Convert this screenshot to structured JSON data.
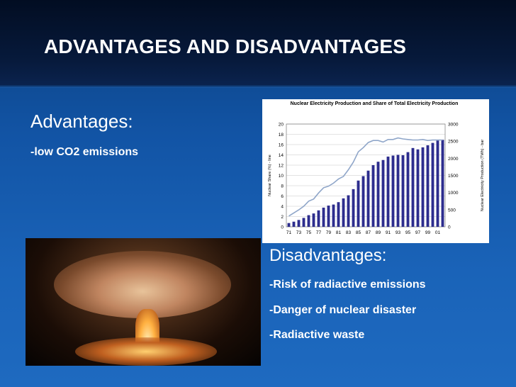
{
  "slide": {
    "title": "ADVANTAGES AND DISADVANTAGES"
  },
  "advantages": {
    "heading": "Advantages:",
    "items": [
      "-low CO2 emissions"
    ]
  },
  "disadvantages": {
    "heading": "Disadvantages:",
    "items": [
      "-Risk of radiactive emissions",
      "-Danger of nuclear disaster",
      "-Radiactive waste"
    ]
  },
  "photo": {
    "subject": "nuclear-explosion-mushroom-cloud"
  },
  "chart_data": {
    "type": "bar",
    "title": "Nuclear Electricity Production and Share of Total Electricity Production",
    "ylabel_left": "Nuclear Share (%) - line",
    "ylabel_right": "Nuclear Electricity Production (TWh) - bar",
    "left_ylim": [
      0,
      20
    ],
    "right_ylim": [
      0,
      3000
    ],
    "left_ticks": [
      "20",
      "18",
      "16",
      "14",
      "12",
      "10",
      "8",
      "6",
      "4",
      "2",
      "0"
    ],
    "right_ticks": [
      "3000",
      "2500",
      "2000",
      "1500",
      "1000",
      "500",
      "0"
    ],
    "x_tick_labels": [
      "71",
      "73",
      "75",
      "77",
      "79",
      "81",
      "83",
      "85",
      "87",
      "89",
      "91",
      "93",
      "95",
      "97",
      "99",
      "01"
    ],
    "years": [
      1971,
      1972,
      1973,
      1974,
      1975,
      1976,
      1977,
      1978,
      1979,
      1980,
      1981,
      1982,
      1983,
      1984,
      1985,
      1986,
      1987,
      1988,
      1989,
      1990,
      1991,
      1992,
      1993,
      1994,
      1995,
      1996,
      1997,
      1998,
      1999,
      2000,
      2001,
      2002
    ],
    "series": [
      {
        "kind": "bar",
        "axis": "right",
        "values": [
          110,
          150,
          200,
          260,
          340,
          390,
          480,
          560,
          620,
          650,
          720,
          830,
          920,
          1100,
          1350,
          1480,
          1640,
          1800,
          1900,
          1950,
          2050,
          2080,
          2100,
          2090,
          2180,
          2300,
          2260,
          2320,
          2380,
          2450,
          2520,
          2540
        ]
      },
      {
        "kind": "line",
        "axis": "left",
        "values": [
          2.1,
          2.7,
          3.3,
          4.0,
          5.0,
          5.4,
          6.6,
          7.6,
          7.9,
          8.5,
          9.3,
          9.8,
          11.1,
          12.6,
          14.6,
          15.4,
          16.4,
          16.8,
          16.8,
          16.5,
          17.0,
          17.0,
          17.3,
          17.1,
          17.0,
          16.9,
          16.9,
          17.0,
          16.8,
          16.9,
          16.9,
          16.9
        ]
      }
    ],
    "bar_color": "#2d2d8e",
    "line_color": "#8fa6c9",
    "grid": true
  }
}
